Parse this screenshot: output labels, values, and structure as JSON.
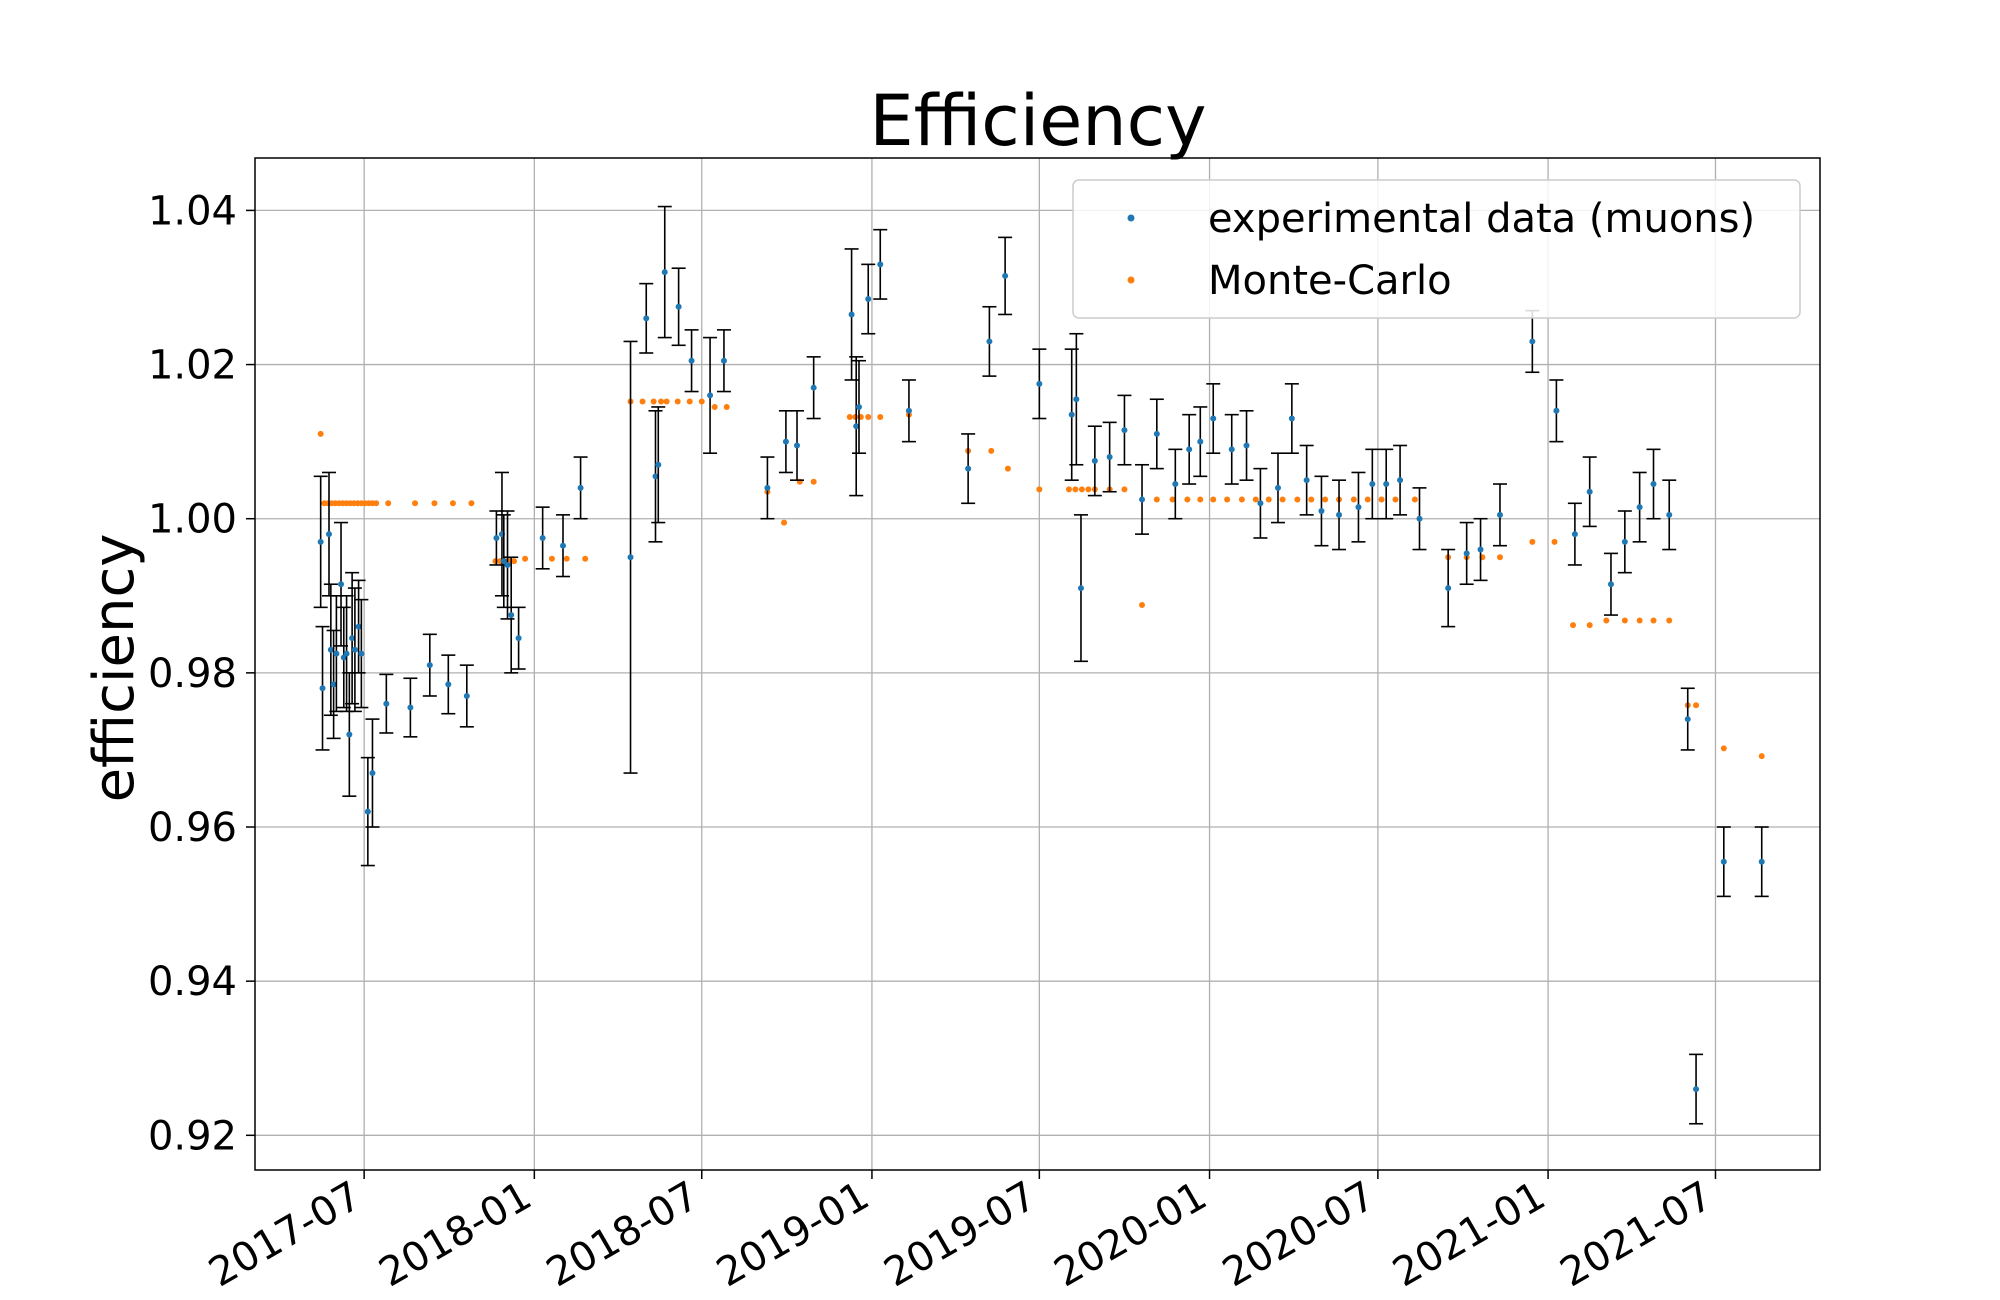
{
  "chart_data": {
    "type": "scatter",
    "title": "Efficiency",
    "ylabel": "efficiency",
    "xlabel": "",
    "x_range": [
      "2017-03-05",
      "2021-10-22"
    ],
    "ylim": [
      0.9155,
      1.0468
    ],
    "y_ticks": [
      0.92,
      0.94,
      0.96,
      0.98,
      1.0,
      1.02,
      1.04
    ],
    "y_tick_labels": [
      "0.92",
      "0.94",
      "0.96",
      "0.98",
      "1.00",
      "1.02",
      "1.04"
    ],
    "x_ticks": [
      "2017-07-01",
      "2018-01-01",
      "2018-07-01",
      "2019-01-01",
      "2019-07-01",
      "2020-01-01",
      "2020-07-01",
      "2021-01-01",
      "2021-07-01"
    ],
    "x_tick_labels": [
      "2017-07",
      "2018-01",
      "2018-07",
      "2019-01",
      "2019-07",
      "2020-01",
      "2020-07",
      "2021-01",
      "2021-07"
    ],
    "grid": true,
    "legend_position": "top-right",
    "colors": {
      "data": "#1f77b4",
      "mc": "#ff7f0e",
      "errorbar": "#000000",
      "grid": "#b0b0b0"
    },
    "series": [
      {
        "name": "experimental data (muons)",
        "kind": "errorbar",
        "points": [
          [
            "2017-05-15",
            0.997,
            0.0085
          ],
          [
            "2017-05-17",
            0.978,
            0.008
          ],
          [
            "2017-05-24",
            0.998,
            0.008
          ],
          [
            "2017-05-26",
            0.983,
            0.0085
          ],
          [
            "2017-05-29",
            0.9785,
            0.007
          ],
          [
            "2017-06-01",
            0.9825,
            0.0075
          ],
          [
            "2017-06-06",
            0.9915,
            0.008
          ],
          [
            "2017-06-09",
            0.982,
            0.0065
          ],
          [
            "2017-06-12",
            0.9825,
            0.0075
          ],
          [
            "2017-06-15",
            0.972,
            0.008
          ],
          [
            "2017-06-18",
            0.9845,
            0.0085
          ],
          [
            "2017-06-21",
            0.983,
            0.008
          ],
          [
            "2017-06-25",
            0.986,
            0.006
          ],
          [
            "2017-06-28",
            0.9825,
            0.007
          ],
          [
            "2017-07-05",
            0.962,
            0.007
          ],
          [
            "2017-07-10",
            0.967,
            0.007
          ],
          [
            "2017-07-25",
            0.976,
            0.0038
          ],
          [
            "2017-08-20",
            0.9755,
            0.0038
          ],
          [
            "2017-09-10",
            0.981,
            0.004
          ],
          [
            "2017-09-30",
            0.9785,
            0.0038
          ],
          [
            "2017-10-20",
            0.977,
            0.004
          ],
          [
            "2017-11-21",
            0.9975,
            0.0035
          ],
          [
            "2017-11-27",
            0.998,
            0.008
          ],
          [
            "2017-11-29",
            0.9945,
            0.006
          ],
          [
            "2017-12-03",
            0.994,
            0.007
          ],
          [
            "2017-12-07",
            0.9875,
            0.0075
          ],
          [
            "2017-12-15",
            0.9845,
            0.004
          ],
          [
            "2018-01-10",
            0.9975,
            0.004
          ],
          [
            "2018-02-01",
            0.9965,
            0.004
          ],
          [
            "2018-02-20",
            1.004,
            0.004
          ],
          [
            "2018-04-15",
            0.995,
            0.028
          ],
          [
            "2018-05-02",
            1.026,
            0.0045
          ],
          [
            "2018-05-12",
            1.0055,
            0.0085
          ],
          [
            "2018-05-15",
            1.007,
            0.0075
          ],
          [
            "2018-05-22",
            1.032,
            0.0085
          ],
          [
            "2018-06-06",
            1.0275,
            0.005
          ],
          [
            "2018-06-20",
            1.0205,
            0.004
          ],
          [
            "2018-07-10",
            1.016,
            0.0075
          ],
          [
            "2018-07-25",
            1.0205,
            0.004
          ],
          [
            "2018-09-10",
            1.004,
            0.004
          ],
          [
            "2018-09-30",
            1.01,
            0.004
          ],
          [
            "2018-10-12",
            1.0095,
            0.0045
          ],
          [
            "2018-10-30",
            1.017,
            0.004
          ],
          [
            "2018-12-10",
            1.0265,
            0.0085
          ],
          [
            "2018-12-15",
            1.012,
            0.009
          ],
          [
            "2018-12-18",
            1.0145,
            0.006
          ],
          [
            "2018-12-28",
            1.0285,
            0.0045
          ],
          [
            "2019-01-10",
            1.033,
            0.0045
          ],
          [
            "2019-02-10",
            1.014,
            0.004
          ],
          [
            "2019-04-15",
            1.0065,
            0.0045
          ],
          [
            "2019-05-08",
            1.023,
            0.0045
          ],
          [
            "2019-05-25",
            1.0315,
            0.005
          ],
          [
            "2019-07-01",
            1.0175,
            0.0045
          ],
          [
            "2019-08-05",
            1.0135,
            0.0085
          ],
          [
            "2019-08-10",
            1.0155,
            0.0085
          ],
          [
            "2019-08-15",
            0.991,
            0.0095
          ],
          [
            "2019-08-30",
            1.0075,
            0.0045
          ],
          [
            "2019-09-15",
            1.008,
            0.0045
          ],
          [
            "2019-10-01",
            1.0115,
            0.0045
          ],
          [
            "2019-10-20",
            1.0025,
            0.0045
          ],
          [
            "2019-11-05",
            1.011,
            0.0045
          ],
          [
            "2019-11-25",
            1.0045,
            0.0045
          ],
          [
            "2019-12-10",
            1.009,
            0.0045
          ],
          [
            "2019-12-22",
            1.01,
            0.0045
          ],
          [
            "2020-01-05",
            1.013,
            0.0045
          ],
          [
            "2020-01-25",
            1.009,
            0.0045
          ],
          [
            "2020-02-10",
            1.0095,
            0.0045
          ],
          [
            "2020-02-25",
            1.002,
            0.0045
          ],
          [
            "2020-03-15",
            1.004,
            0.0045
          ],
          [
            "2020-03-30",
            1.013,
            0.0045
          ],
          [
            "2020-04-15",
            1.005,
            0.0045
          ],
          [
            "2020-05-01",
            1.001,
            0.0045
          ],
          [
            "2020-05-20",
            1.0005,
            0.0045
          ],
          [
            "2020-06-10",
            1.0015,
            0.0045
          ],
          [
            "2020-06-25",
            1.0045,
            0.0045
          ],
          [
            "2020-07-10",
            1.0045,
            0.0045
          ],
          [
            "2020-07-25",
            1.005,
            0.0045
          ],
          [
            "2020-08-15",
            1.0,
            0.004
          ],
          [
            "2020-09-15",
            0.991,
            0.005
          ],
          [
            "2020-10-05",
            0.9955,
            0.004
          ],
          [
            "2020-10-20",
            0.996,
            0.004
          ],
          [
            "2020-11-10",
            1.0005,
            0.004
          ],
          [
            "2020-12-15",
            1.023,
            0.004
          ],
          [
            "2021-01-10",
            1.014,
            0.004
          ],
          [
            "2021-01-30",
            0.998,
            0.004
          ],
          [
            "2021-02-15",
            1.0035,
            0.0045
          ],
          [
            "2021-03-10",
            0.9915,
            0.004
          ],
          [
            "2021-03-25",
            0.997,
            0.004
          ],
          [
            "2021-04-10",
            1.0015,
            0.0045
          ],
          [
            "2021-04-25",
            1.0045,
            0.0045
          ],
          [
            "2021-05-12",
            1.0005,
            0.0045
          ],
          [
            "2021-06-01",
            0.974,
            0.004
          ],
          [
            "2021-06-10",
            0.926,
            0.0045
          ],
          [
            "2021-07-10",
            0.9555,
            0.0045
          ],
          [
            "2021-08-20",
            0.9555,
            0.0045
          ]
        ]
      },
      {
        "name": "Monte-Carlo",
        "kind": "points",
        "points": [
          [
            "2017-05-15",
            1.011
          ],
          [
            "2017-05-19",
            1.002
          ],
          [
            "2017-05-23",
            1.002
          ],
          [
            "2017-05-27",
            1.002
          ],
          [
            "2017-05-31",
            1.002
          ],
          [
            "2017-06-04",
            1.002
          ],
          [
            "2017-06-08",
            1.002
          ],
          [
            "2017-06-12",
            1.002
          ],
          [
            "2017-06-16",
            1.002
          ],
          [
            "2017-06-20",
            1.002
          ],
          [
            "2017-06-24",
            1.002
          ],
          [
            "2017-06-28",
            1.002
          ],
          [
            "2017-07-02",
            1.002
          ],
          [
            "2017-07-06",
            1.002
          ],
          [
            "2017-07-10",
            1.002
          ],
          [
            "2017-07-14",
            1.002
          ],
          [
            "2017-07-27",
            1.002
          ],
          [
            "2017-08-25",
            1.002
          ],
          [
            "2017-09-15",
            1.002
          ],
          [
            "2017-10-05",
            1.002
          ],
          [
            "2017-10-25",
            1.002
          ],
          [
            "2017-11-20",
            0.9945
          ],
          [
            "2017-11-25",
            0.9945
          ],
          [
            "2017-11-30",
            0.9945
          ],
          [
            "2017-12-05",
            0.9945
          ],
          [
            "2017-12-10",
            0.9945
          ],
          [
            "2017-12-22",
            0.9948
          ],
          [
            "2018-01-20",
            0.9948
          ],
          [
            "2018-02-05",
            0.9948
          ],
          [
            "2018-02-25",
            0.9948
          ],
          [
            "2018-04-15",
            1.0152
          ],
          [
            "2018-04-28",
            1.0152
          ],
          [
            "2018-05-10",
            1.0152
          ],
          [
            "2018-05-18",
            1.0152
          ],
          [
            "2018-05-24",
            1.0152
          ],
          [
            "2018-06-05",
            1.0152
          ],
          [
            "2018-06-18",
            1.0152
          ],
          [
            "2018-07-01",
            1.0152
          ],
          [
            "2018-07-15",
            1.0145
          ],
          [
            "2018-07-28",
            1.0145
          ],
          [
            "2018-09-10",
            1.0035
          ],
          [
            "2018-09-28",
            0.9995
          ],
          [
            "2018-10-15",
            1.0048
          ],
          [
            "2018-10-30",
            1.0048
          ],
          [
            "2018-12-08",
            1.0132
          ],
          [
            "2018-12-14",
            1.0132
          ],
          [
            "2018-12-20",
            1.0132
          ],
          [
            "2018-12-28",
            1.0132
          ],
          [
            "2019-01-10",
            1.0132
          ],
          [
            "2019-02-10",
            1.0135
          ],
          [
            "2019-04-15",
            1.0088
          ],
          [
            "2019-05-10",
            1.0088
          ],
          [
            "2019-05-28",
            1.0065
          ],
          [
            "2019-07-01",
            1.0038
          ],
          [
            "2019-08-02",
            1.0038
          ],
          [
            "2019-08-09",
            1.0038
          ],
          [
            "2019-08-16",
            1.0038
          ],
          [
            "2019-08-23",
            1.0038
          ],
          [
            "2019-08-30",
            1.0038
          ],
          [
            "2019-09-15",
            1.0038
          ],
          [
            "2019-10-01",
            1.0038
          ],
          [
            "2019-10-20",
            0.9888
          ],
          [
            "2019-11-05",
            1.0025
          ],
          [
            "2019-11-22",
            1.0025
          ],
          [
            "2019-12-08",
            1.0025
          ],
          [
            "2019-12-22",
            1.0025
          ],
          [
            "2020-01-05",
            1.0025
          ],
          [
            "2020-01-20",
            1.0025
          ],
          [
            "2020-02-05",
            1.0025
          ],
          [
            "2020-02-20",
            1.0025
          ],
          [
            "2020-03-05",
            1.0025
          ],
          [
            "2020-03-20",
            1.0025
          ],
          [
            "2020-04-05",
            1.0025
          ],
          [
            "2020-04-20",
            1.0025
          ],
          [
            "2020-05-05",
            1.0025
          ],
          [
            "2020-05-20",
            1.0025
          ],
          [
            "2020-06-05",
            1.0025
          ],
          [
            "2020-06-20",
            1.0025
          ],
          [
            "2020-07-05",
            1.0025
          ],
          [
            "2020-07-20",
            1.0025
          ],
          [
            "2020-08-10",
            1.0025
          ],
          [
            "2020-09-15",
            0.995
          ],
          [
            "2020-10-05",
            0.995
          ],
          [
            "2020-10-22",
            0.995
          ],
          [
            "2020-11-10",
            0.995
          ],
          [
            "2020-12-15",
            0.997
          ],
          [
            "2021-01-08",
            0.997
          ],
          [
            "2021-01-28",
            0.9862
          ],
          [
            "2021-02-15",
            0.9862
          ],
          [
            "2021-03-05",
            0.9868
          ],
          [
            "2021-03-25",
            0.9868
          ],
          [
            "2021-04-10",
            0.9868
          ],
          [
            "2021-04-25",
            0.9868
          ],
          [
            "2021-05-12",
            0.9868
          ],
          [
            "2021-06-01",
            0.9758
          ],
          [
            "2021-06-10",
            0.9758
          ],
          [
            "2021-07-10",
            0.9702
          ],
          [
            "2021-08-20",
            0.9692
          ]
        ]
      }
    ]
  }
}
